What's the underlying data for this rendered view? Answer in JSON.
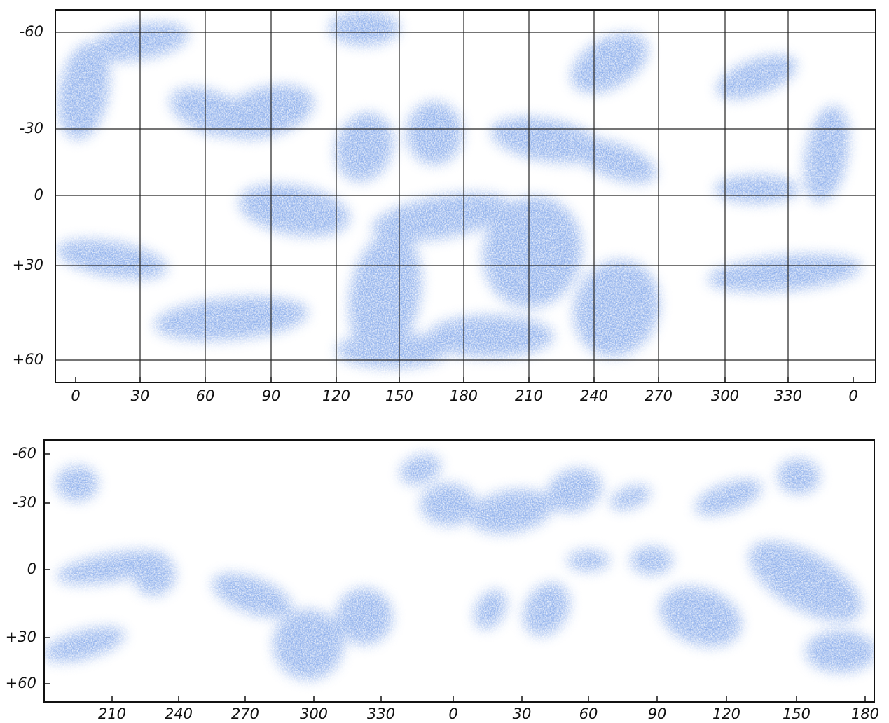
{
  "top_map": {
    "y_labels": [
      "-60",
      "-30",
      "0",
      "+30",
      "+60"
    ],
    "x_labels": [
      "0",
      "30",
      "60",
      "90",
      "120",
      "150",
      "180",
      "210",
      "240",
      "270",
      "300",
      "330",
      "0"
    ]
  },
  "bottom_map": {
    "y_labels": [
      "-60",
      "-30",
      "0",
      "+30",
      "+60"
    ],
    "x_labels": [
      "210",
      "240",
      "270",
      "300",
      "330",
      "0",
      "30",
      "60",
      "90",
      "120",
      "150",
      "180"
    ]
  }
}
